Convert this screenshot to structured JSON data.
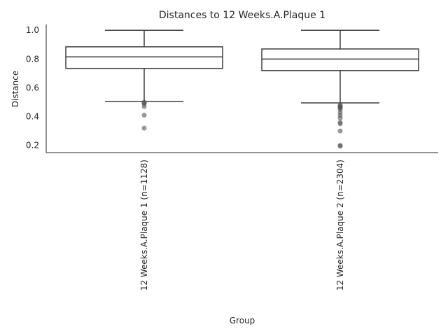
{
  "chart_data": {
    "type": "box",
    "title": "Distances to 12 Weeks.A.Plaque 1",
    "xlabel": "Group",
    "ylabel": "Distance",
    "ylim": [
      0.15,
      1.04
    ],
    "yticks": [
      0.2,
      0.4,
      0.6,
      0.8,
      1.0
    ],
    "ytick_labels": [
      "0.2",
      "0.4",
      "0.6",
      "0.8",
      "1.0"
    ],
    "grid": false,
    "categories": [
      "12 Weeks.A.Plaque 1 (n=1128)",
      "12 Weeks.A.Plaque 2 (n=2304)"
    ],
    "boxes": [
      {
        "category": "12 Weeks.A.Plaque 1 (n=1128)",
        "whisker_low": 0.505,
        "q1": 0.735,
        "median": 0.815,
        "q3": 0.885,
        "whisker_high": 1.0,
        "outliers": [
          0.5,
          0.495,
          0.49,
          0.47,
          0.41,
          0.32
        ]
      },
      {
        "category": "12 Weeks.A.Plaque 2 (n=2304)",
        "whisker_low": 0.495,
        "q1": 0.72,
        "median": 0.8,
        "q3": 0.87,
        "whisker_high": 1.0,
        "outliers": [
          0.48,
          0.475,
          0.47,
          0.465,
          0.46,
          0.45,
          0.43,
          0.41,
          0.39,
          0.36,
          0.35,
          0.3,
          0.2,
          0.195
        ]
      }
    ],
    "colors": {
      "box_line": "#3f3f3f",
      "outlier": "#555555",
      "axis": "#262626"
    }
  }
}
